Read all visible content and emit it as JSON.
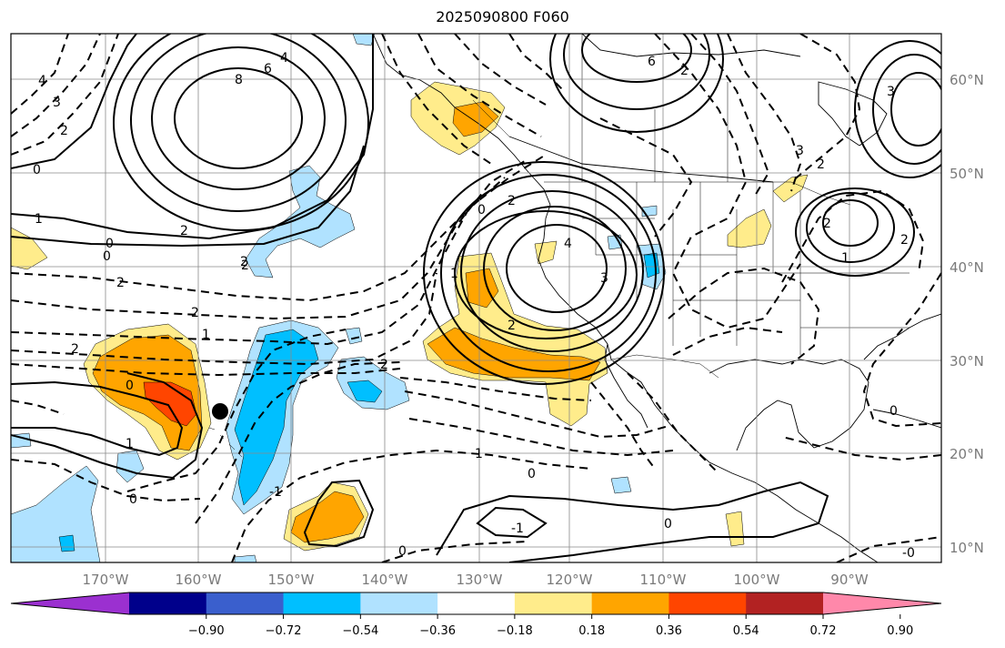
{
  "title": "2025090800 F060",
  "lat_labels": [
    "60°N",
    "50°N",
    "40°N",
    "30°N",
    "20°N",
    "10°N"
  ],
  "lon_labels": [
    "170°W",
    "160°W",
    "150°W",
    "140°W",
    "130°W",
    "120°W",
    "110°W",
    "100°W",
    "90°W"
  ],
  "colorbar": {
    "ticks": [
      "−0.90",
      "−0.72",
      "−0.54",
      "−0.36",
      "−0.18",
      "0.18",
      "0.36",
      "0.54",
      "0.72",
      "0.90"
    ],
    "colors": [
      "#9b30d0",
      "#00008b",
      "#3a5fcd",
      "#00bfff",
      "#b0e2ff",
      "#ffffff",
      "#ffec8b",
      "#ffa500",
      "#ff4500",
      "#b22222",
      "#ff88aa"
    ]
  },
  "fill_colors": {
    "light_blue": "#b0e2ff",
    "blue": "#00bfff",
    "yellow": "#ffec8b",
    "orange": "#ffa500",
    "red": "#ff4500"
  },
  "contour_labels": [
    "8",
    "6",
    "4",
    "3",
    "4",
    "6",
    "2",
    "3",
    "0",
    "2",
    "2",
    "1",
    "0",
    "2",
    "2",
    "2",
    "1",
    "2",
    "0",
    "1",
    "0",
    "-1",
    "2",
    "4",
    "3",
    "2",
    "0",
    "1",
    "2",
    "3",
    "2",
    "2",
    "1",
    "-1",
    "0",
    "0",
    "0",
    "1",
    "0",
    "2",
    "2",
    "0",
    "-0"
  ],
  "marker": "tropical-system-dot"
}
